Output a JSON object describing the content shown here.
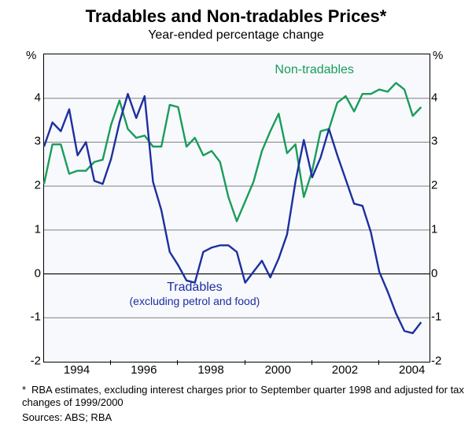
{
  "chart": {
    "type": "line",
    "title": "Tradables and Non-tradables Prices*",
    "subtitle": "Year-ended percentage change",
    "title_fontsize": 22,
    "subtitle_fontsize": 16,
    "background_color": "#ffffff",
    "plot_background": "#f7f9fc",
    "grid_color": "#808080",
    "zero_color": "#000000",
    "y_unit_label": "%",
    "ylim": [
      -2,
      5
    ],
    "ytick_step": 1,
    "yticks": [
      -2,
      -1,
      0,
      1,
      2,
      3,
      4
    ],
    "x_start_year": 1993.0,
    "x_end_year": 2004.5,
    "xticks_years": [
      1994,
      1996,
      1998,
      2000,
      2002,
      2004
    ],
    "xtick_labels": [
      "1994",
      "1996",
      "1998",
      "2000",
      "2002",
      "2004"
    ],
    "series": [
      {
        "name": "Non-tradables",
        "label": "Non-tradables",
        "color": "#1a9c5b",
        "line_width": 2.4,
        "label_pos": {
          "x_year": 2001.2,
          "y_val": 4.6
        },
        "data": [
          [
            1993.0,
            2.05
          ],
          [
            1993.25,
            2.95
          ],
          [
            1993.5,
            2.95
          ],
          [
            1993.75,
            2.28
          ],
          [
            1994.0,
            2.35
          ],
          [
            1994.25,
            2.35
          ],
          [
            1994.5,
            2.55
          ],
          [
            1994.75,
            2.6
          ],
          [
            1995.0,
            3.4
          ],
          [
            1995.25,
            3.95
          ],
          [
            1995.5,
            3.3
          ],
          [
            1995.75,
            3.1
          ],
          [
            1996.0,
            3.15
          ],
          [
            1996.25,
            2.9
          ],
          [
            1996.5,
            2.9
          ],
          [
            1996.75,
            3.85
          ],
          [
            1997.0,
            3.8
          ],
          [
            1997.25,
            2.9
          ],
          [
            1997.5,
            3.1
          ],
          [
            1997.75,
            2.7
          ],
          [
            1998.0,
            2.8
          ],
          [
            1998.25,
            2.55
          ],
          [
            1998.5,
            1.75
          ],
          [
            1998.75,
            1.2
          ],
          [
            1999.0,
            1.65
          ],
          [
            1999.25,
            2.1
          ],
          [
            1999.5,
            2.8
          ],
          [
            1999.75,
            3.25
          ],
          [
            2000.0,
            3.65
          ],
          [
            2000.25,
            2.75
          ],
          [
            2000.5,
            2.95
          ],
          [
            2000.75,
            1.75
          ],
          [
            2001.0,
            2.35
          ],
          [
            2001.25,
            3.25
          ],
          [
            2001.5,
            3.3
          ],
          [
            2001.75,
            3.9
          ],
          [
            2002.0,
            4.05
          ],
          [
            2002.25,
            3.7
          ],
          [
            2002.5,
            4.1
          ],
          [
            2002.75,
            4.1
          ],
          [
            2003.0,
            4.2
          ],
          [
            2003.25,
            4.15
          ],
          [
            2003.5,
            4.35
          ],
          [
            2003.75,
            4.2
          ],
          [
            2004.0,
            3.6
          ],
          [
            2004.25,
            3.8
          ]
        ]
      },
      {
        "name": "Tradables",
        "label": "Tradables",
        "sublabel": "(excluding petrol and food)",
        "color": "#1d2f9f",
        "line_width": 2.4,
        "label_pos": {
          "x_year": 1997.8,
          "y_val": -0.35
        },
        "data": [
          [
            1993.0,
            2.9
          ],
          [
            1993.25,
            3.45
          ],
          [
            1993.5,
            3.25
          ],
          [
            1993.75,
            3.75
          ],
          [
            1994.0,
            2.7
          ],
          [
            1994.25,
            3.0
          ],
          [
            1994.5,
            2.12
          ],
          [
            1994.75,
            2.05
          ],
          [
            1995.0,
            2.62
          ],
          [
            1995.25,
            3.45
          ],
          [
            1995.5,
            4.1
          ],
          [
            1995.75,
            3.55
          ],
          [
            1996.0,
            4.05
          ],
          [
            1996.25,
            2.1
          ],
          [
            1996.5,
            1.45
          ],
          [
            1996.75,
            0.5
          ],
          [
            1997.0,
            0.2
          ],
          [
            1997.25,
            -0.15
          ],
          [
            1997.5,
            -0.2
          ],
          [
            1997.75,
            0.5
          ],
          [
            1998.0,
            0.6
          ],
          [
            1998.25,
            0.65
          ],
          [
            1998.5,
            0.65
          ],
          [
            1998.75,
            0.5
          ],
          [
            1999.0,
            -0.2
          ],
          [
            1999.25,
            0.05
          ],
          [
            1999.5,
            0.3
          ],
          [
            1999.75,
            -0.08
          ],
          [
            2000.0,
            0.35
          ],
          [
            2000.25,
            0.9
          ],
          [
            2000.5,
            2.1
          ],
          [
            2000.75,
            3.05
          ],
          [
            2001.0,
            2.2
          ],
          [
            2001.25,
            2.65
          ],
          [
            2001.5,
            3.3
          ],
          [
            2001.75,
            2.7
          ],
          [
            2002.0,
            2.15
          ],
          [
            2002.25,
            1.6
          ],
          [
            2002.5,
            1.55
          ],
          [
            2002.75,
            0.95
          ],
          [
            2003.0,
            0.05
          ],
          [
            2003.25,
            -0.4
          ],
          [
            2003.5,
            -0.9
          ],
          [
            2003.75,
            -1.3
          ],
          [
            2004.0,
            -1.35
          ],
          [
            2004.25,
            -1.1
          ]
        ]
      }
    ],
    "footnote_marker": "*",
    "footnote_text": "RBA estimates, excluding interest charges prior to September quarter 1998 and adjusted for tax changes of 1999/2000",
    "sources_label": "Sources: ABS; RBA"
  }
}
